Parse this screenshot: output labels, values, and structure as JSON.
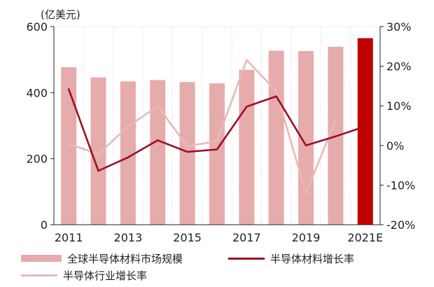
{
  "chart_data": {
    "type": "bar+line",
    "unit_label": "(亿美元)",
    "categories": [
      "2011",
      "2012",
      "2013",
      "2014",
      "2015",
      "2016",
      "2017",
      "2018",
      "2019",
      "2020",
      "2021E"
    ],
    "x_tick_labels": [
      "2011",
      "2013",
      "2015",
      "2017",
      "2019",
      "2021E"
    ],
    "left_axis": {
      "ylim": [
        0,
        600
      ],
      "ticks": [
        "0",
        "200",
        "400",
        "600"
      ]
    },
    "right_axis": {
      "ylim": [
        -20,
        30
      ],
      "ticks": [
        "-20%",
        "-10%",
        "0%",
        "10%",
        "20%",
        "30%"
      ]
    },
    "grid": false,
    "legend_position": "bottom",
    "series": [
      {
        "name": "全球半导体材料市场规模",
        "type": "bar",
        "axis": "left",
        "values": [
          477,
          446,
          434,
          438,
          432,
          428,
          469,
          527,
          526,
          539,
          565
        ],
        "highlight_last": true
      },
      {
        "name": "半导体材料增长率",
        "type": "line",
        "axis": "right",
        "values": [
          14.2,
          -6.4,
          -3.0,
          1.3,
          -1.6,
          -1.0,
          9.8,
          12.4,
          0.0,
          2.3,
          4.8
        ]
      },
      {
        "name": "半导体行业增长率",
        "type": "line",
        "axis": "right",
        "values": [
          0.4,
          -2.2,
          4.8,
          9.9,
          -0.2,
          1.1,
          21.6,
          13.7,
          -12.1,
          6.5,
          null
        ]
      }
    ]
  },
  "colors": {
    "bar": "#e6abab",
    "bar_highlight": "#c00000",
    "material_growth_line": "#9c0f26",
    "industry_growth_line": "#ebb8b8",
    "axis": "#222222",
    "grid": "#c8c8c8"
  }
}
